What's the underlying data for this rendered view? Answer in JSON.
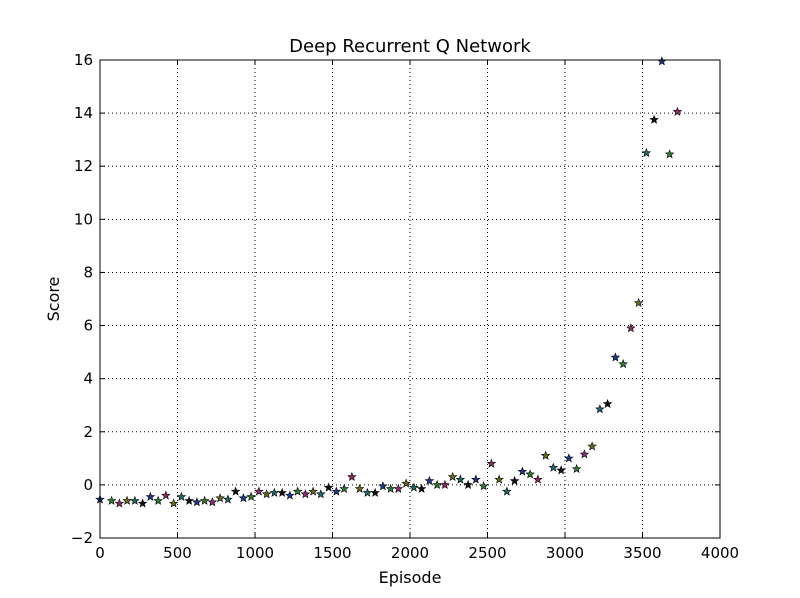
{
  "chart_data": {
    "type": "scatter",
    "title": "Deep Recurrent Q Network",
    "xlabel": "Episode",
    "ylabel": "Score",
    "xlim": [
      0,
      4000
    ],
    "ylim": [
      -2,
      16
    ],
    "xticks": [
      "0",
      "500",
      "1000",
      "1500",
      "2000",
      "2500",
      "3000",
      "3500",
      "4000"
    ],
    "yticks": [
      "−2",
      "0",
      "2",
      "4",
      "6",
      "8",
      "10",
      "12",
      "14",
      "16"
    ],
    "xtick_values": [
      0,
      500,
      1000,
      1500,
      2000,
      2500,
      3000,
      3500,
      4000
    ],
    "ytick_values": [
      -2,
      0,
      2,
      4,
      6,
      8,
      10,
      12,
      14,
      16
    ],
    "grid": true,
    "marker": "star",
    "marker_colors": [
      "#1f3a8a",
      "#2e7d32",
      "#8e2a6a",
      "#6b6b1f",
      "#1f6b6b",
      "#111111"
    ],
    "points": [
      [
        0,
        -0.55
      ],
      [
        75,
        -0.6
      ],
      [
        125,
        -0.7
      ],
      [
        175,
        -0.6
      ],
      [
        225,
        -0.6
      ],
      [
        275,
        -0.7
      ],
      [
        325,
        -0.45
      ],
      [
        375,
        -0.6
      ],
      [
        425,
        -0.4
      ],
      [
        475,
        -0.7
      ],
      [
        525,
        -0.45
      ],
      [
        575,
        -0.6
      ],
      [
        625,
        -0.65
      ],
      [
        675,
        -0.6
      ],
      [
        725,
        -0.65
      ],
      [
        775,
        -0.5
      ],
      [
        825,
        -0.55
      ],
      [
        875,
        -0.25
      ],
      [
        925,
        -0.5
      ],
      [
        975,
        -0.45
      ],
      [
        1025,
        -0.25
      ],
      [
        1075,
        -0.35
      ],
      [
        1125,
        -0.3
      ],
      [
        1175,
        -0.3
      ],
      [
        1225,
        -0.4
      ],
      [
        1275,
        -0.25
      ],
      [
        1325,
        -0.35
      ],
      [
        1375,
        -0.25
      ],
      [
        1425,
        -0.35
      ],
      [
        1475,
        -0.1
      ],
      [
        1525,
        -0.25
      ],
      [
        1575,
        -0.15
      ],
      [
        1625,
        0.3
      ],
      [
        1675,
        -0.15
      ],
      [
        1725,
        -0.3
      ],
      [
        1775,
        -0.3
      ],
      [
        1825,
        -0.05
      ],
      [
        1875,
        -0.15
      ],
      [
        1925,
        -0.15
      ],
      [
        1975,
        0.05
      ],
      [
        2025,
        -0.1
      ],
      [
        2075,
        -0.15
      ],
      [
        2125,
        0.15
      ],
      [
        2175,
        0.0
      ],
      [
        2225,
        0.0
      ],
      [
        2275,
        0.3
      ],
      [
        2325,
        0.2
      ],
      [
        2375,
        0.0
      ],
      [
        2425,
        0.2
      ],
      [
        2475,
        -0.05
      ],
      [
        2525,
        0.8
      ],
      [
        2575,
        0.2
      ],
      [
        2625,
        -0.25
      ],
      [
        2675,
        0.15
      ],
      [
        2725,
        0.5
      ],
      [
        2775,
        0.4
      ],
      [
        2825,
        0.2
      ],
      [
        2875,
        1.1
      ],
      [
        2925,
        0.65
      ],
      [
        2975,
        0.55
      ],
      [
        3025,
        1.0
      ],
      [
        3075,
        0.6
      ],
      [
        3125,
        1.15
      ],
      [
        3175,
        1.45
      ],
      [
        3225,
        2.85
      ],
      [
        3275,
        3.05
      ],
      [
        3325,
        4.8
      ],
      [
        3375,
        4.55
      ],
      [
        3425,
        5.9
      ],
      [
        3475,
        6.85
      ],
      [
        3525,
        12.5
      ],
      [
        3575,
        13.75
      ],
      [
        3625,
        15.95
      ],
      [
        3675,
        12.45
      ],
      [
        3725,
        14.05
      ]
    ]
  }
}
